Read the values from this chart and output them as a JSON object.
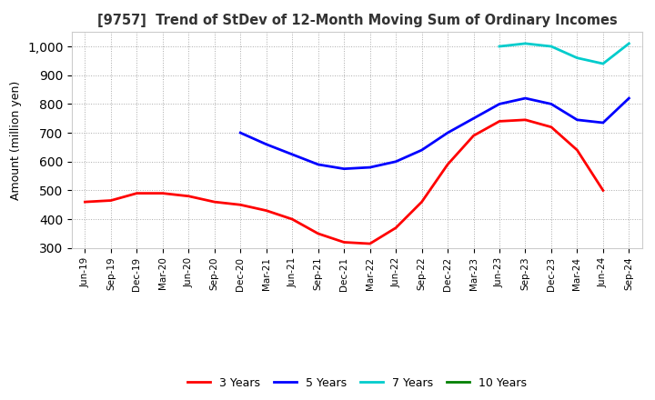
{
  "title": "[9757]  Trend of StDev of 12-Month Moving Sum of Ordinary Incomes",
  "ylabel": "Amount (million yen)",
  "ylim": [
    300,
    1050
  ],
  "yticks": [
    300,
    400,
    500,
    600,
    700,
    800,
    900,
    1000
  ],
  "background_color": "#ffffff",
  "grid_color": "#aaaaaa",
  "series": {
    "3 Years": {
      "color": "#ff0000",
      "values": [
        460,
        465,
        490,
        490,
        480,
        460,
        450,
        430,
        400,
        350,
        320,
        315,
        370,
        460,
        590,
        690,
        740,
        745,
        720,
        640,
        500,
        null
      ]
    },
    "5 Years": {
      "color": "#0000ff",
      "values": [
        null,
        null,
        null,
        null,
        null,
        null,
        700,
        660,
        625,
        590,
        575,
        580,
        600,
        640,
        700,
        750,
        800,
        820,
        800,
        745,
        735,
        820
      ]
    },
    "7 Years": {
      "color": "#00cccc",
      "values": [
        null,
        null,
        null,
        null,
        null,
        null,
        null,
        null,
        null,
        null,
        null,
        null,
        null,
        null,
        null,
        null,
        1000,
        1010,
        1000,
        960,
        940,
        1010
      ]
    },
    "10 Years": {
      "color": "#008000",
      "values": [
        null,
        null,
        null,
        null,
        null,
        null,
        null,
        null,
        null,
        null,
        null,
        null,
        null,
        null,
        null,
        null,
        null,
        null,
        null,
        null,
        null,
        null
      ]
    }
  },
  "xtick_labels": [
    "Jun-19",
    "Sep-19",
    "Dec-19",
    "Mar-20",
    "Jun-20",
    "Sep-20",
    "Dec-20",
    "Mar-21",
    "Jun-21",
    "Sep-21",
    "Dec-21",
    "Mar-22",
    "Jun-22",
    "Sep-22",
    "Dec-22",
    "Mar-23",
    "Jun-23",
    "Sep-23",
    "Dec-23",
    "Mar-24",
    "Jun-24",
    "Sep-24"
  ],
  "legend_labels": [
    "3 Years",
    "5 Years",
    "7 Years",
    "10 Years"
  ],
  "legend_colors": [
    "#ff0000",
    "#0000ff",
    "#00cccc",
    "#008000"
  ]
}
